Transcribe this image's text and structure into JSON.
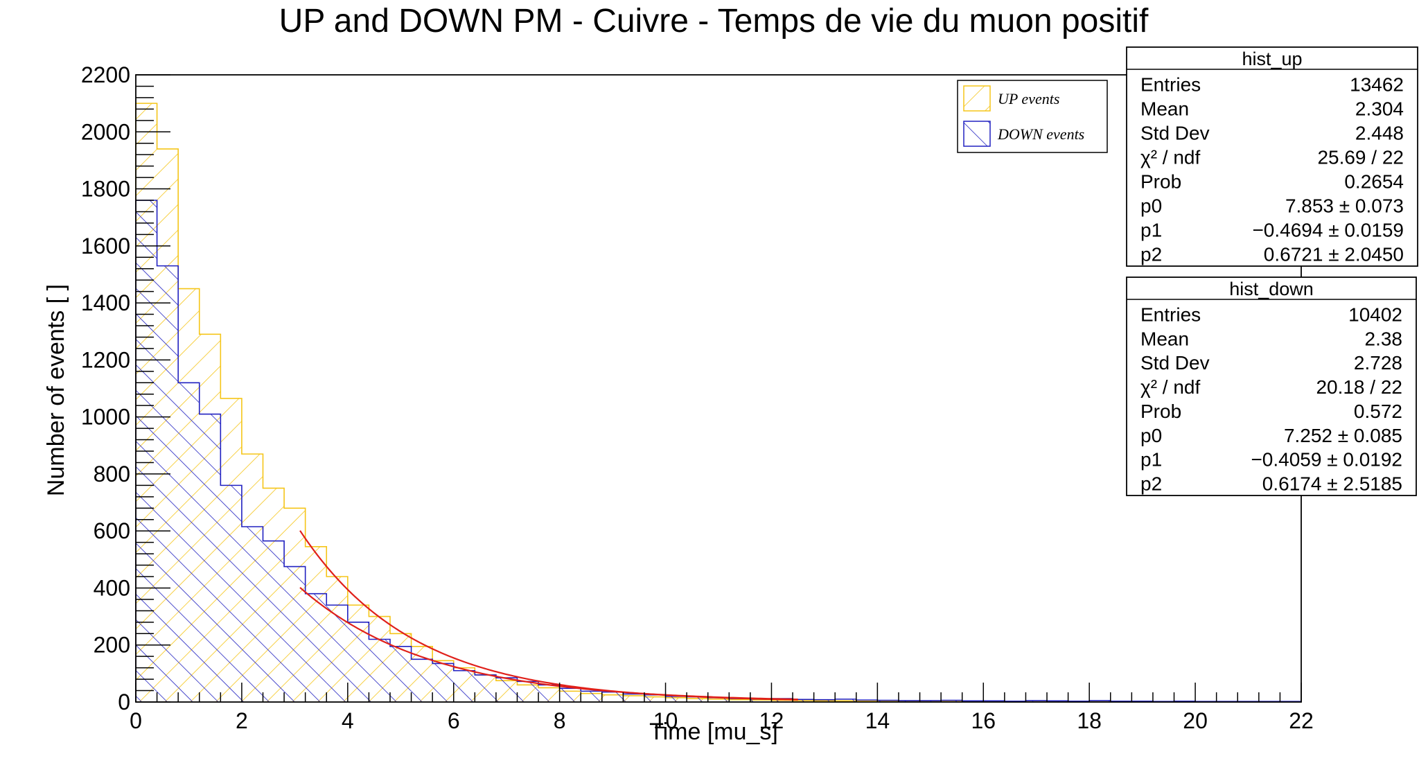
{
  "chart_data": {
    "type": "bar",
    "title": "UP and DOWN PM - Cuivre - Temps de vie du muon positif",
    "xlabel": "Time [mu_s]",
    "ylabel": "Number of events [ ]",
    "xlim": [
      0,
      22
    ],
    "ylim": [
      0,
      2200
    ],
    "xticks": [
      "0",
      "2",
      "4",
      "6",
      "8",
      "10",
      "12",
      "14",
      "16",
      "18",
      "20",
      "22"
    ],
    "yticks": [
      "0",
      "200",
      "400",
      "600",
      "800",
      "1000",
      "1200",
      "1400",
      "1600",
      "1800",
      "2000",
      "2200"
    ],
    "grid": false,
    "legend_placement": "top-right",
    "bin_width": 0.4,
    "series": [
      {
        "name": "UP events",
        "color": "#f5c518",
        "hatch": "down-right",
        "values": [
          2100,
          1940,
          1450,
          1290,
          1065,
          870,
          750,
          680,
          545,
          440,
          340,
          300,
          240,
          195,
          145,
          120,
          95,
          75,
          60,
          50,
          38,
          30,
          25,
          22,
          18,
          15,
          12,
          10,
          8,
          7,
          6,
          5,
          4,
          4,
          3,
          3,
          2,
          2,
          2,
          2,
          1,
          1,
          1,
          1,
          1,
          1,
          1,
          1,
          1,
          1,
          1,
          1,
          1,
          1,
          1
        ]
      },
      {
        "name": "DOWN events",
        "color": "#2020c0",
        "hatch": "up-right",
        "values": [
          1760,
          1530,
          1120,
          1010,
          760,
          615,
          565,
          475,
          380,
          340,
          280,
          220,
          195,
          150,
          135,
          110,
          95,
          85,
          72,
          60,
          48,
          38,
          35,
          28,
          25,
          20,
          18,
          15,
          12,
          10,
          12,
          9,
          8,
          10,
          7,
          6,
          5,
          5,
          6,
          4,
          4,
          3,
          5,
          4,
          3,
          5,
          3,
          3,
          2,
          3,
          2,
          2,
          2,
          2,
          2
        ]
      }
    ],
    "fits": [
      {
        "name": "fit_up",
        "color": "#e0201a",
        "p0": 7.853,
        "p1": -0.4694,
        "p2": 0.6721,
        "x_range": [
          3.1,
          12.5
        ]
      },
      {
        "name": "fit_down",
        "color": "#e0201a",
        "p0": 7.252,
        "p1": -0.4059,
        "p2": 0.6174,
        "x_range": [
          3.1,
          12.5
        ]
      }
    ],
    "legend": {
      "entries": [
        "UP events",
        "DOWN events"
      ]
    },
    "stat_boxes": [
      {
        "title": "hist_up",
        "rows": [
          {
            "label": "Entries",
            "value": "13462"
          },
          {
            "label": "Mean",
            "value": "2.304"
          },
          {
            "label": "Std Dev",
            "value": "2.448"
          },
          {
            "label": "χ² / ndf",
            "value": "25.69 / 22"
          },
          {
            "label": "Prob",
            "value": "0.2654"
          },
          {
            "label": "p0",
            "value": "7.853 ± 0.073"
          },
          {
            "label": "p1",
            "value": "−0.4694 ± 0.0159"
          },
          {
            "label": "p2",
            "value": "0.6721 ± 2.0450"
          }
        ]
      },
      {
        "title": "hist_down",
        "rows": [
          {
            "label": "Entries",
            "value": "10402"
          },
          {
            "label": "Mean",
            "value": "2.38"
          },
          {
            "label": "Std Dev",
            "value": "2.728"
          },
          {
            "label": "χ² / ndf",
            "value": "20.18 / 22"
          },
          {
            "label": "Prob",
            "value": "0.572"
          },
          {
            "label": "p0",
            "value": "7.252 ± 0.085"
          },
          {
            "label": "p1",
            "value": "−0.4059 ± 0.0192"
          },
          {
            "label": "p2",
            "value": "0.6174 ± 2.5185"
          }
        ]
      }
    ]
  }
}
